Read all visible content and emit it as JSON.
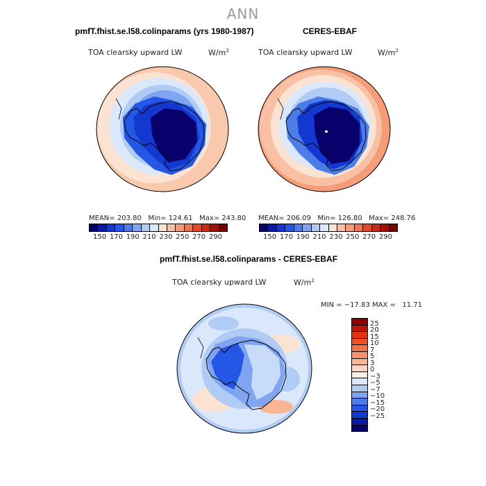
{
  "main_title": "ANN",
  "panel_left": {
    "title": "pmfT.fhist.se.l58.colinparams (yrs 1980-1987)",
    "variable": "TOA clearsky upward LW",
    "units_base": "W/m",
    "units_exp": "2",
    "stats": "MEAN= 203.80   Min= 124.61   Max= 243.80"
  },
  "panel_right": {
    "title": "CERES-EBAF",
    "variable": "TOA clearsky upward LW",
    "units_base": "W/m",
    "units_exp": "2",
    "stats": "MEAN= 206.09   Min= 126.80   Max= 248.76"
  },
  "panel_diff": {
    "title": "pmfT.fhist.se.l58.colinparams - CERES-EBAF",
    "variable": "TOA clearsky upward LW",
    "units_base": "W/m",
    "units_exp": "2",
    "stats": "MIN = −17.83 MAX =   11.71"
  },
  "colorbar_top": {
    "ticks": [
      "150",
      "170",
      "190",
      "210",
      "230",
      "250",
      "270",
      "290"
    ],
    "colors": [
      "#08006b",
      "#0a1aa8",
      "#1238d0",
      "#2557e6",
      "#4a7de8",
      "#7fa5f0",
      "#b0ccf5",
      "#dbe8fb",
      "#fbe3d3",
      "#f8c0a3",
      "#f59c78",
      "#ef7451",
      "#e34a2c",
      "#c82a14",
      "#a31005",
      "#7a0000"
    ]
  },
  "colorbar_diff": {
    "ticks": [
      "25",
      "20",
      "15",
      "10",
      "7",
      "5",
      "3",
      "0",
      "−3",
      "−5",
      "−7",
      "−10",
      "−15",
      "−20",
      "−25"
    ],
    "colors": [
      "#8b0000",
      "#c0150a",
      "#e6330f",
      "#f2501d",
      "#f57246",
      "#f7946c",
      "#f9b596",
      "#fbd6c3",
      "#fbeee6",
      "#dbe8fb",
      "#b0ccf5",
      "#7fa5f0",
      "#4a7de8",
      "#2557e6",
      "#1238d0",
      "#0a1aa8",
      "#08006b"
    ]
  }
}
